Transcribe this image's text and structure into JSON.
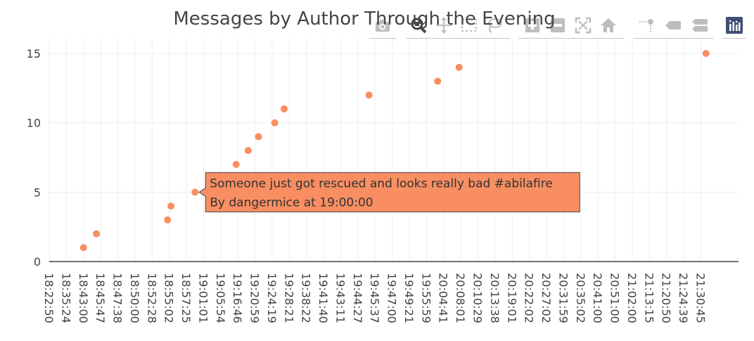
{
  "chart_data": {
    "type": "scatter",
    "title": "Messages by Author Through the Evening",
    "xlabel": "",
    "ylabel": "",
    "y_ticks": [
      0,
      5,
      10,
      15
    ],
    "ylim": [
      0,
      16
    ],
    "grid": true,
    "x_categories": [
      "18:22:50",
      "18:35:24",
      "18:43:00",
      "18:45:47",
      "18:47:38",
      "18:50:00",
      "18:52:28",
      "18:55:02",
      "18:57:25",
      "19:01:01",
      "19:05:54",
      "19:16:46",
      "19:20:59",
      "19:24:19",
      "19:28:21",
      "19:38:22",
      "19:41:40",
      "19:43:11",
      "19:44:27",
      "19:45:37",
      "19:47:00",
      "19:49:21",
      "19:55:59",
      "20:04:41",
      "20:08:01",
      "20:10:29",
      "20:13:38",
      "20:19:01",
      "20:22:02",
      "20:27:02",
      "20:31:59",
      "20:35:02",
      "20:41:00",
      "20:51:00",
      "21:02:00",
      "21:13:15",
      "21:20:50",
      "21:24:39",
      "21:30:45"
    ],
    "points": [
      {
        "x_index": 2.0,
        "y": 1
      },
      {
        "x_index": 2.75,
        "y": 2
      },
      {
        "x_index": 6.9,
        "y": 3
      },
      {
        "x_index": 7.1,
        "y": 4
      },
      {
        "x_index": 8.5,
        "y": 5
      },
      {
        "x_index": 10.9,
        "y": 7
      },
      {
        "x_index": 11.6,
        "y": 8
      },
      {
        "x_index": 12.2,
        "y": 9
      },
      {
        "x_index": 13.15,
        "y": 10
      },
      {
        "x_index": 13.7,
        "y": 11
      },
      {
        "x_index": 18.65,
        "y": 12
      },
      {
        "x_index": 22.65,
        "y": 13
      },
      {
        "x_index": 23.9,
        "y": 14
      },
      {
        "x_index": 38.3,
        "y": 15
      }
    ],
    "tooltip": {
      "point_index": 4,
      "line1": "Someone just got rescued and looks really bad  #abilafire",
      "line2": "By  dangermice  at  19:00:00"
    },
    "colors": {
      "marker": "#f88e62",
      "grid": "#eeeeee",
      "axis": "#444444",
      "text": "#444444"
    }
  },
  "modebar": {
    "buttons": [
      "camera-icon",
      "zoom-icon",
      "pan-icon",
      "box-select-icon",
      "lasso-icon",
      "zoom-in-icon",
      "zoom-out-icon",
      "autoscale-icon",
      "home-icon",
      "spike-lines-icon",
      "hover-closest-icon",
      "hover-compare-icon",
      "plotly-logo-icon"
    ],
    "active": "zoom-icon"
  }
}
